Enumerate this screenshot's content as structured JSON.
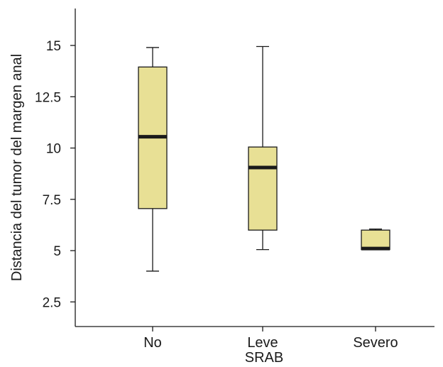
{
  "chart_data": {
    "type": "boxplot",
    "title": "",
    "xlabel": "SRAB",
    "ylabel": "Distancia del tumor del margen anal",
    "categories": [
      "No",
      "Leve",
      "Severo"
    ],
    "series": [
      {
        "category": "No",
        "min": 4.0,
        "q1": 7.05,
        "median": 10.55,
        "q3": 13.95,
        "max": 14.9
      },
      {
        "category": "Leve",
        "min": 5.05,
        "q1": 6.0,
        "median": 9.05,
        "q3": 10.05,
        "max": 14.95
      },
      {
        "category": "Severo",
        "min": 5.05,
        "q1": 5.05,
        "median": 5.1,
        "q3": 6.0,
        "max": 6.05
      }
    ],
    "yticks": [
      2.5,
      5,
      7.5,
      10,
      12.5,
      15
    ],
    "ytick_labels": [
      "2.5",
      "5",
      "7.5",
      "10",
      "12.5",
      "15"
    ],
    "ylim": [
      1.3,
      16.8
    ],
    "box_color": "#e8e095",
    "line_color": "#1a1a1a",
    "grid": false
  }
}
